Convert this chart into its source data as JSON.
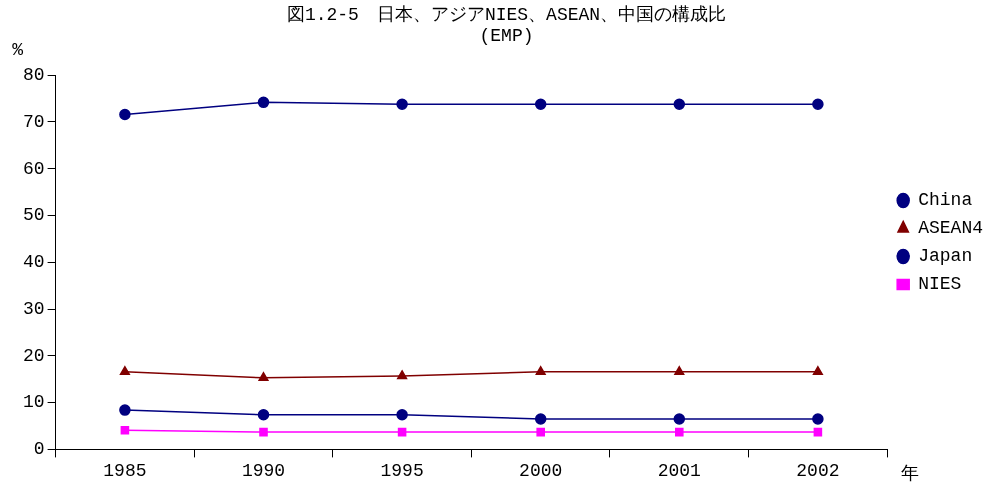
{
  "chart_data": {
    "type": "line",
    "title": "図1.2-5　日本、アジアNIES、ASEAN、中国の構成比",
    "subtitle": "(EMP)",
    "ylabel": "%",
    "xlabel": "年",
    "categories": [
      "1985",
      "1990",
      "1995",
      "2000",
      "2001",
      "2002"
    ],
    "series": [
      {
        "name": "China",
        "color": "#000080",
        "marker": "circle",
        "values": [
          71.6,
          74.2,
          73.8,
          73.8,
          73.8,
          73.8
        ]
      },
      {
        "name": "ASEAN4",
        "color": "#800000",
        "marker": "triangle",
        "values": [
          16.6,
          15.3,
          15.7,
          16.6,
          16.6,
          16.6
        ]
      },
      {
        "name": "Japan",
        "color": "#000080",
        "marker": "circle",
        "values": [
          8.4,
          7.4,
          7.4,
          6.5,
          6.5,
          6.5
        ]
      },
      {
        "name": "NIES",
        "color": "#ff00ff",
        "marker": "square",
        "values": [
          4.1,
          3.7,
          3.7,
          3.7,
          3.7,
          3.7
        ]
      }
    ],
    "ylim": [
      0,
      80
    ],
    "yticks": [
      0,
      10,
      20,
      30,
      40,
      50,
      60,
      70,
      80
    ],
    "grid": false,
    "legend": "right",
    "line_style": "solid"
  }
}
